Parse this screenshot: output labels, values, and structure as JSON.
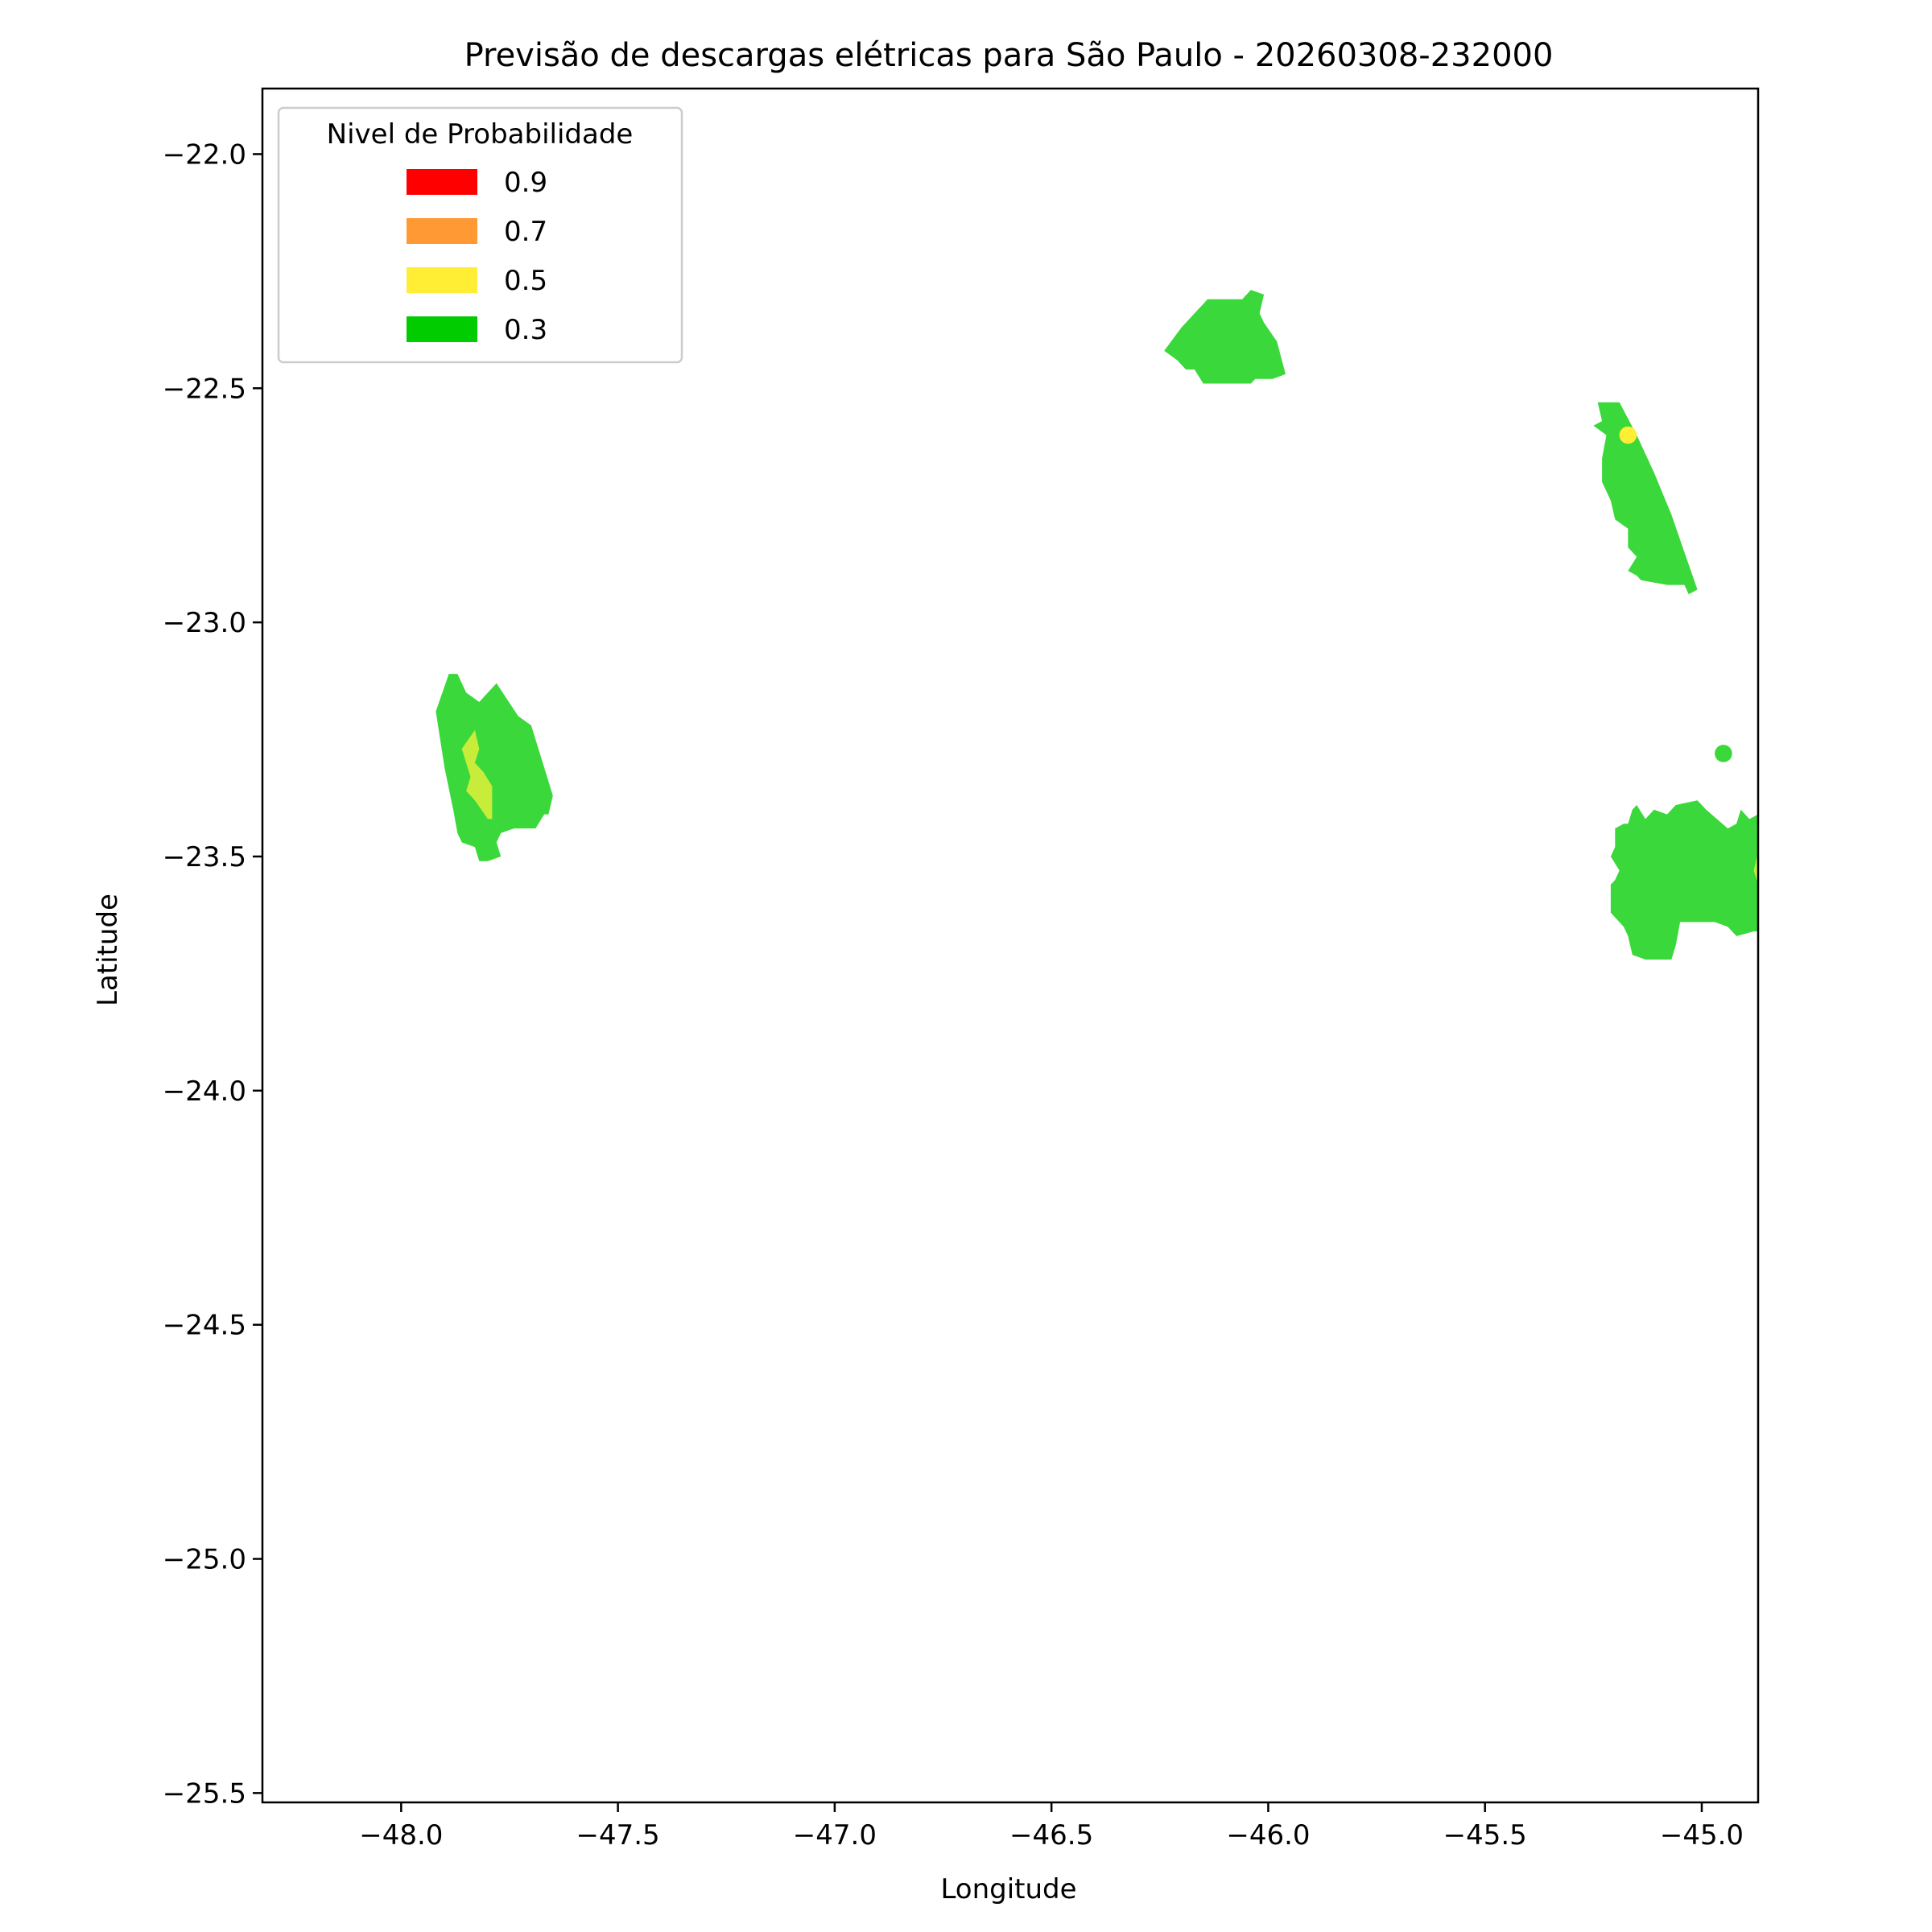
{
  "chart_data": {
    "type": "map",
    "title": "Previsão de descargas elétricas para São Paulo - 20260308-232000",
    "xlabel": "Longitude",
    "ylabel": "Latitude",
    "xlim": [
      -48.32,
      -44.87
    ],
    "ylim": [
      -25.52,
      -21.86
    ],
    "xticks": [
      -48.0,
      -47.5,
      -47.0,
      -46.5,
      -46.0,
      -45.5,
      -45.0
    ],
    "yticks": [
      -22.0,
      -22.5,
      -23.0,
      -23.5,
      -24.0,
      -24.5,
      -25.0,
      -25.5
    ],
    "xtick_labels": [
      "−48.0",
      "−47.5",
      "−47.0",
      "−46.5",
      "−46.0",
      "−45.5",
      "−45.0"
    ],
    "ytick_labels": [
      "−22.0",
      "−22.5",
      "−23.0",
      "−23.5",
      "−24.0",
      "−24.5",
      "−25.0",
      "−25.5"
    ],
    "grid": false,
    "legend": {
      "title": "Nivel de Probabilidade",
      "placement": "top-left",
      "entries": [
        {
          "label": "0.9",
          "color": "#ff0000"
        },
        {
          "label": "0.7",
          "color": "#ff9933"
        },
        {
          "label": "0.5",
          "color": "#ffee33"
        },
        {
          "label": "0.3",
          "color": "#00cc00"
        }
      ]
    },
    "fill_colors": {
      "level_0_3": "#3ad83a",
      "level_0_5": "#ffee33",
      "mixed_0_5": "#c8ec3a"
    },
    "regions": [
      {
        "name": "region-west",
        "level": 0.3,
        "color": "#3ad83a",
        "points": [
          [
            -47.89,
            -23.11
          ],
          [
            -47.87,
            -23.11
          ],
          [
            -47.85,
            -23.15
          ],
          [
            -47.82,
            -23.17
          ],
          [
            -47.78,
            -23.13
          ],
          [
            -47.73,
            -23.2
          ],
          [
            -47.7,
            -23.22
          ],
          [
            -47.65,
            -23.37
          ],
          [
            -47.66,
            -23.41
          ],
          [
            -47.67,
            -23.41
          ],
          [
            -47.69,
            -23.44
          ],
          [
            -47.74,
            -23.44
          ],
          [
            -47.77,
            -23.45
          ],
          [
            -47.78,
            -23.47
          ],
          [
            -47.77,
            -23.5
          ],
          [
            -47.8,
            -23.51
          ],
          [
            -47.82,
            -23.51
          ],
          [
            -47.83,
            -23.48
          ],
          [
            -47.86,
            -23.47
          ],
          [
            -47.87,
            -23.45
          ],
          [
            -47.88,
            -23.4
          ],
          [
            -47.9,
            -23.31
          ],
          [
            -47.92,
            -23.19
          ]
        ]
      },
      {
        "name": "region-north",
        "level": 0.3,
        "color": "#3ad83a",
        "points": [
          [
            -46.24,
            -22.42
          ],
          [
            -46.2,
            -22.37
          ],
          [
            -46.16,
            -22.33
          ],
          [
            -46.15,
            -22.32
          ],
          [
            -46.14,
            -22.31
          ],
          [
            -46.06,
            -22.31
          ],
          [
            -46.04,
            -22.29
          ],
          [
            -46.01,
            -22.3
          ],
          [
            -46.02,
            -22.34
          ],
          [
            -46.01,
            -22.36
          ],
          [
            -45.98,
            -22.4
          ],
          [
            -45.96,
            -22.47
          ],
          [
            -45.99,
            -22.48
          ],
          [
            -46.03,
            -22.48
          ],
          [
            -46.04,
            -22.49
          ],
          [
            -46.15,
            -22.49
          ],
          [
            -46.17,
            -22.46
          ],
          [
            -46.19,
            -22.46
          ],
          [
            -46.21,
            -22.44
          ]
        ]
      },
      {
        "name": "region-northeast",
        "level": 0.3,
        "color": "#3ad83a",
        "points": [
          [
            -45.24,
            -22.53
          ],
          [
            -45.19,
            -22.53
          ],
          [
            -45.15,
            -22.6
          ],
          [
            -45.11,
            -22.68
          ],
          [
            -45.07,
            -22.77
          ],
          [
            -45.04,
            -22.85
          ],
          [
            -45.01,
            -22.93
          ],
          [
            -45.03,
            -22.94
          ],
          [
            -45.04,
            -22.92
          ],
          [
            -45.08,
            -22.92
          ],
          [
            -45.14,
            -22.91
          ],
          [
            -45.15,
            -22.9
          ],
          [
            -45.17,
            -22.89
          ],
          [
            -45.15,
            -22.86
          ],
          [
            -45.17,
            -22.84
          ],
          [
            -45.17,
            -22.8
          ],
          [
            -45.2,
            -22.78
          ],
          [
            -45.21,
            -22.74
          ],
          [
            -45.23,
            -22.7
          ],
          [
            -45.23,
            -22.65
          ],
          [
            -45.22,
            -22.6
          ],
          [
            -45.25,
            -22.58
          ],
          [
            -45.23,
            -22.57
          ]
        ]
      },
      {
        "name": "region-east",
        "level": 0.3,
        "color": "#3ad83a",
        "points": [
          [
            -45.21,
            -23.56
          ],
          [
            -45.21,
            -23.62
          ],
          [
            -45.18,
            -23.65
          ],
          [
            -45.17,
            -23.67
          ],
          [
            -45.16,
            -23.71
          ],
          [
            -45.13,
            -23.72
          ],
          [
            -45.07,
            -23.72
          ],
          [
            -45.06,
            -23.69
          ],
          [
            -45.05,
            -23.64
          ],
          [
            -44.97,
            -23.64
          ],
          [
            -44.94,
            -23.65
          ],
          [
            -44.92,
            -23.67
          ],
          [
            -44.88,
            -23.66
          ],
          [
            -44.87,
            -23.66
          ],
          [
            -44.87,
            -23.41
          ],
          [
            -44.89,
            -23.42
          ],
          [
            -44.91,
            -23.4
          ],
          [
            -44.92,
            -23.43
          ],
          [
            -44.94,
            -23.44
          ],
          [
            -44.99,
            -23.4
          ],
          [
            -45.01,
            -23.38
          ],
          [
            -45.06,
            -23.39
          ],
          [
            -45.08,
            -23.41
          ],
          [
            -45.11,
            -23.4
          ],
          [
            -45.13,
            -23.42
          ],
          [
            -45.15,
            -23.39
          ],
          [
            -45.16,
            -23.4
          ],
          [
            -45.17,
            -23.43
          ],
          [
            -45.18,
            -23.43
          ],
          [
            -45.2,
            -23.44
          ],
          [
            -45.2,
            -23.48
          ],
          [
            -45.21,
            -23.5
          ],
          [
            -45.19,
            -23.53
          ],
          [
            -45.2,
            -23.55
          ]
        ]
      },
      {
        "name": "region-west-core",
        "level": 0.5,
        "color": "#c8ec3a",
        "points": [
          [
            -47.83,
            -23.23
          ],
          [
            -47.82,
            -23.27
          ],
          [
            -47.83,
            -23.3
          ],
          [
            -47.81,
            -23.32
          ],
          [
            -47.79,
            -23.35
          ],
          [
            -47.79,
            -23.42
          ],
          [
            -47.8,
            -23.42
          ],
          [
            -47.83,
            -23.38
          ],
          [
            -47.85,
            -23.36
          ],
          [
            -47.84,
            -23.33
          ],
          [
            -47.86,
            -23.27
          ]
        ]
      },
      {
        "name": "region-east-edge",
        "level": 0.5,
        "color": "#c8ec3a",
        "points": [
          [
            -44.87,
            -23.49
          ],
          [
            -44.88,
            -23.53
          ],
          [
            -44.87,
            -23.56
          ]
        ]
      }
    ],
    "spots": [
      {
        "name": "spot-northeast",
        "level": 0.5,
        "color": "#ffee33",
        "x": -45.17,
        "y": -22.6,
        "r": 0.02
      },
      {
        "name": "spot-east",
        "level": 0.3,
        "color": "#3ad83a",
        "x": -44.95,
        "y": -23.28,
        "r": 0.02
      }
    ]
  }
}
